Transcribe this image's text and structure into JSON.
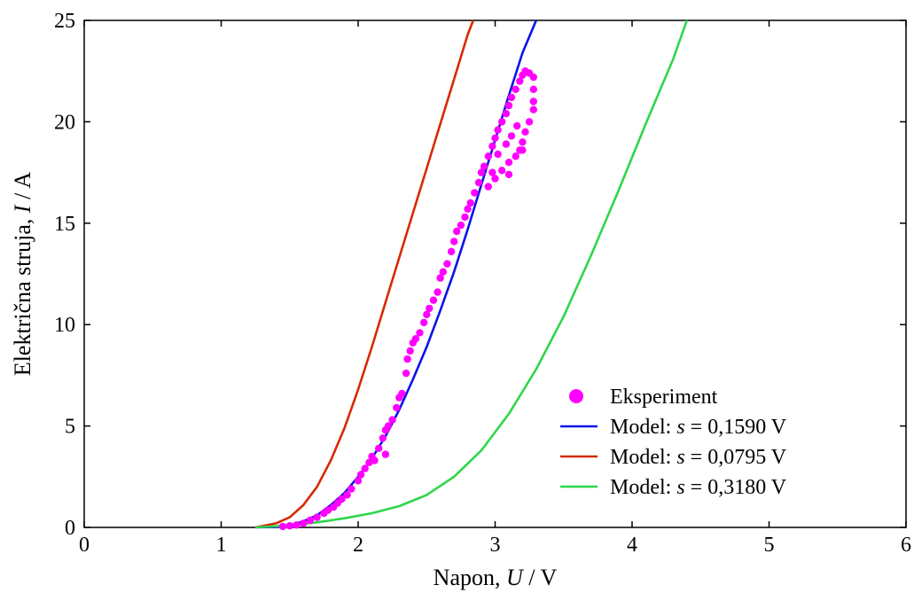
{
  "chart_data": {
    "type": "scatter",
    "title": "",
    "xlabel": {
      "prefix": "Napon, ",
      "var": "U",
      "suffix": " / V"
    },
    "ylabel": {
      "prefix": "Električna struja, ",
      "var": "I",
      "suffix": " / A"
    },
    "xlim": [
      0,
      6
    ],
    "ylim": [
      0,
      25
    ],
    "xticks": [
      0,
      1,
      2,
      3,
      4,
      5,
      6
    ],
    "yticks": [
      0,
      5,
      10,
      15,
      20,
      25
    ],
    "grid": false,
    "legend_position": "bottom-right",
    "series": [
      {
        "name": "Eksperiment",
        "kind": "scatter",
        "color": "#ff00ff",
        "points": [
          [
            1.45,
            0.05
          ],
          [
            1.5,
            0.08
          ],
          [
            1.55,
            0.12
          ],
          [
            1.6,
            0.2
          ],
          [
            1.65,
            0.35
          ],
          [
            1.7,
            0.5
          ],
          [
            1.75,
            0.7
          ],
          [
            1.78,
            0.85
          ],
          [
            1.82,
            1.0
          ],
          [
            1.85,
            1.2
          ],
          [
            1.88,
            1.4
          ],
          [
            1.92,
            1.6
          ],
          [
            1.95,
            1.9
          ],
          [
            2.0,
            2.3
          ],
          [
            2.02,
            2.6
          ],
          [
            2.05,
            2.9
          ],
          [
            2.08,
            3.2
          ],
          [
            2.1,
            3.5
          ],
          [
            2.12,
            3.3
          ],
          [
            2.15,
            3.9
          ],
          [
            2.18,
            4.4
          ],
          [
            2.2,
            4.8
          ],
          [
            2.2,
            3.6
          ],
          [
            2.22,
            5.0
          ],
          [
            2.25,
            5.3
          ],
          [
            2.28,
            5.9
          ],
          [
            2.3,
            6.4
          ],
          [
            2.32,
            6.6
          ],
          [
            2.35,
            7.6
          ],
          [
            2.36,
            8.3
          ],
          [
            2.38,
            8.7
          ],
          [
            2.4,
            9.1
          ],
          [
            2.42,
            9.3
          ],
          [
            2.45,
            9.6
          ],
          [
            2.48,
            10.1
          ],
          [
            2.5,
            10.5
          ],
          [
            2.52,
            10.8
          ],
          [
            2.55,
            11.2
          ],
          [
            2.58,
            11.6
          ],
          [
            2.6,
            12.3
          ],
          [
            2.62,
            12.6
          ],
          [
            2.65,
            13.0
          ],
          [
            2.68,
            13.6
          ],
          [
            2.7,
            14.1
          ],
          [
            2.72,
            14.6
          ],
          [
            2.75,
            14.9
          ],
          [
            2.78,
            15.3
          ],
          [
            2.8,
            15.7
          ],
          [
            2.82,
            16.0
          ],
          [
            2.85,
            16.5
          ],
          [
            2.88,
            17.0
          ],
          [
            2.9,
            17.5
          ],
          [
            2.92,
            17.8
          ],
          [
            2.95,
            18.3
          ],
          [
            2.98,
            18.8
          ],
          [
            3.0,
            19.2
          ],
          [
            3.02,
            19.6
          ],
          [
            3.05,
            20.0
          ],
          [
            3.08,
            20.4
          ],
          [
            3.1,
            20.8
          ],
          [
            3.12,
            21.2
          ],
          [
            3.15,
            21.6
          ],
          [
            3.18,
            22.0
          ],
          [
            3.2,
            22.3
          ],
          [
            3.22,
            22.5
          ],
          [
            3.25,
            22.4
          ],
          [
            3.28,
            22.2
          ],
          [
            3.28,
            21.6
          ],
          [
            3.28,
            21.0
          ],
          [
            3.28,
            20.6
          ],
          [
            3.25,
            20.0
          ],
          [
            3.22,
            19.5
          ],
          [
            3.2,
            19.0
          ],
          [
            3.18,
            18.6
          ],
          [
            3.15,
            18.3
          ],
          [
            3.1,
            18.0
          ],
          [
            3.05,
            17.6
          ],
          [
            3.0,
            17.2
          ],
          [
            2.95,
            16.8
          ],
          [
            2.98,
            17.5
          ],
          [
            3.02,
            18.4
          ],
          [
            3.08,
            18.9
          ],
          [
            3.12,
            19.3
          ],
          [
            3.16,
            19.8
          ],
          [
            3.2,
            18.6
          ],
          [
            3.1,
            17.4
          ]
        ]
      },
      {
        "name": "Model: s = 0,1590 V",
        "label_parts": [
          "Model: ",
          "s",
          " = 0,1590 V"
        ],
        "kind": "line",
        "color": "#0b13e8",
        "points": [
          [
            1.25,
            0.0
          ],
          [
            1.4,
            0.02
          ],
          [
            1.5,
            0.1
          ],
          [
            1.6,
            0.3
          ],
          [
            1.7,
            0.6
          ],
          [
            1.8,
            1.1
          ],
          [
            1.9,
            1.7
          ],
          [
            2.0,
            2.5
          ],
          [
            2.1,
            3.4
          ],
          [
            2.2,
            4.5
          ],
          [
            2.3,
            5.8
          ],
          [
            2.4,
            7.3
          ],
          [
            2.5,
            8.9
          ],
          [
            2.6,
            10.7
          ],
          [
            2.7,
            12.6
          ],
          [
            2.8,
            14.7
          ],
          [
            2.9,
            16.9
          ],
          [
            3.0,
            19.1
          ],
          [
            3.1,
            21.3
          ],
          [
            3.2,
            23.4
          ],
          [
            3.3,
            25.0
          ]
        ]
      },
      {
        "name": "Model: s = 0,0795 V",
        "label_parts": [
          "Model: ",
          "s",
          " = 0,0795 V"
        ],
        "kind": "line",
        "color": "#d62a00",
        "points": [
          [
            1.25,
            0.0
          ],
          [
            1.4,
            0.2
          ],
          [
            1.5,
            0.5
          ],
          [
            1.6,
            1.1
          ],
          [
            1.7,
            2.0
          ],
          [
            1.8,
            3.3
          ],
          [
            1.9,
            4.9
          ],
          [
            2.0,
            6.8
          ],
          [
            2.1,
            8.9
          ],
          [
            2.2,
            11.1
          ],
          [
            2.3,
            13.3
          ],
          [
            2.4,
            15.5
          ],
          [
            2.5,
            17.7
          ],
          [
            2.6,
            19.9
          ],
          [
            2.7,
            22.1
          ],
          [
            2.8,
            24.3
          ],
          [
            2.84,
            25.0
          ]
        ]
      },
      {
        "name": "Model: s = 0,3180 V",
        "label_parts": [
          "Model: ",
          "s",
          " = 0,3180 V"
        ],
        "kind": "line",
        "color": "#2ed64a",
        "points": [
          [
            1.25,
            0.0
          ],
          [
            1.5,
            0.1
          ],
          [
            1.7,
            0.25
          ],
          [
            1.9,
            0.45
          ],
          [
            2.1,
            0.7
          ],
          [
            2.3,
            1.05
          ],
          [
            2.5,
            1.6
          ],
          [
            2.7,
            2.5
          ],
          [
            2.9,
            3.8
          ],
          [
            3.1,
            5.6
          ],
          [
            3.3,
            7.8
          ],
          [
            3.5,
            10.4
          ],
          [
            3.7,
            13.4
          ],
          [
            3.9,
            16.6
          ],
          [
            4.1,
            19.9
          ],
          [
            4.3,
            23.1
          ],
          [
            4.4,
            25.0
          ]
        ]
      }
    ]
  }
}
